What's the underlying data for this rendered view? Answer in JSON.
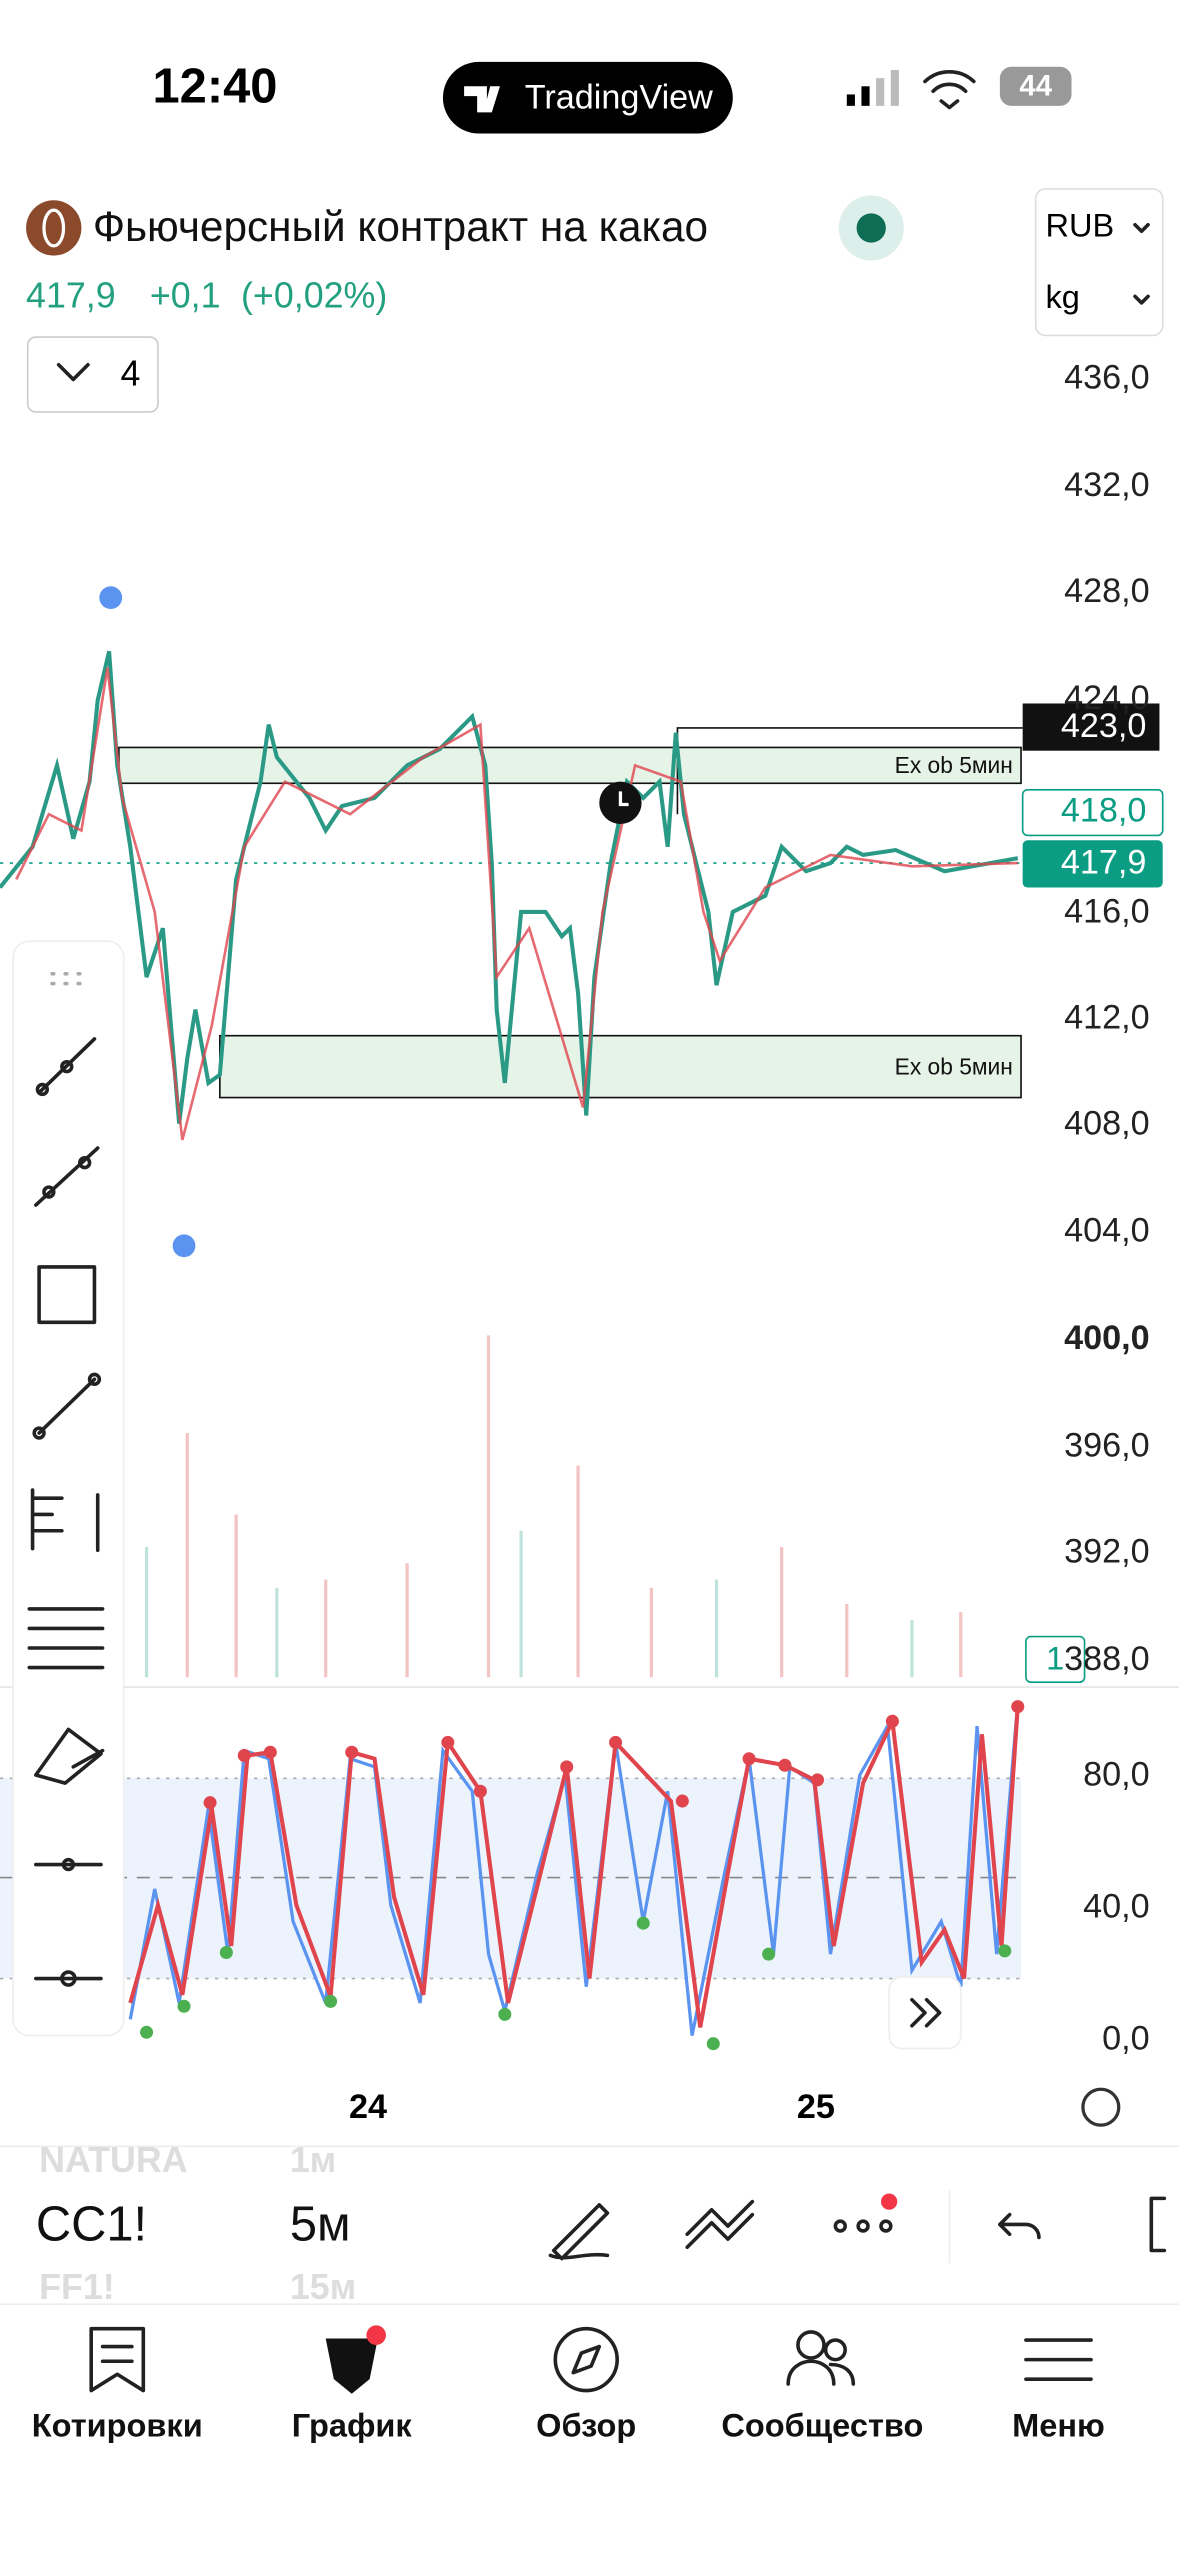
{
  "status_bar": {
    "time": "12:40",
    "app_badge": "TradingView",
    "battery": "44"
  },
  "header": {
    "title": "Фьючерсный контракт на какао",
    "price": "417,9",
    "change": "+0,1",
    "change_pct": "(+0,02%)",
    "currency": "RUB",
    "unit": "kg",
    "indicators_count": "4"
  },
  "price_axis": {
    "labels": [
      "436,0",
      "432,0",
      "428,0",
      "424,0",
      "416,0",
      "412,0",
      "408,0",
      "404,0",
      "400,0",
      "396,0",
      "392,0",
      "388,0"
    ],
    "level_badge": "423,0",
    "alert_badge": "418,0",
    "current_badge": "417,9",
    "volume_badge": "1"
  },
  "zones": [
    {
      "label": "Ex ob 5мин"
    },
    {
      "label": "Ex ob 5мин"
    }
  ],
  "oscillator_axis": [
    "80,0",
    "40,0",
    "0,0"
  ],
  "time_axis": [
    "24",
    "25"
  ],
  "symbol_bar": {
    "prev_symbol": "NATURA",
    "symbol": "CC1!",
    "next_symbol": "FF1!",
    "prev_interval": "1м",
    "interval": "5м",
    "next_interval": "15м"
  },
  "tab_bar": [
    "Котировки",
    "График",
    "Обзор",
    "Сообщество",
    "Меню"
  ]
}
